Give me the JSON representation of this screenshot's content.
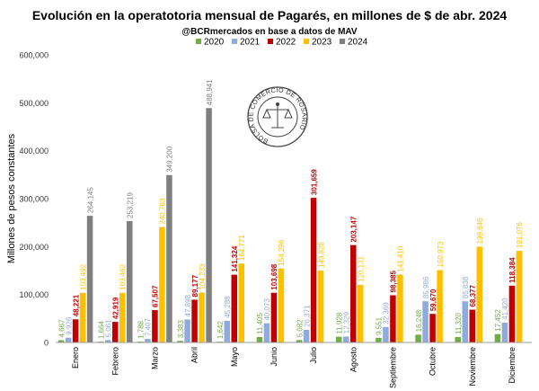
{
  "chart_data": {
    "type": "bar",
    "title": "Evolución en la operatotoria mensual de Pagarés, en millones de $ de abr. 2024",
    "subtitle": "@BCRmercados en base a datos de MAV",
    "ylabel": "Millones de pesos constantes",
    "xlabel": "",
    "ylim": [
      0,
      600000
    ],
    "yticks": [
      0,
      100000,
      200000,
      300000,
      400000,
      500000,
      600000
    ],
    "ytick_labels": [
      "0",
      "100,000",
      "200,000",
      "300,000",
      "400,000",
      "500,000",
      "600,000"
    ],
    "grid": false,
    "legend_position": "top",
    "categories": [
      "Enero",
      "Febrero",
      "Marzo",
      "Abril",
      "Mayo",
      "Junio",
      "Julio",
      "Agosto",
      "Septiembre",
      "Octubre",
      "Noviembre",
      "Diciembre"
    ],
    "series": [
      {
        "name": "2020",
        "color": "#70ad47",
        "values": [
          4667,
          1664,
          1788,
          3383,
          1642,
          11405,
          5082,
          11928,
          9551,
          16248,
          11320,
          17452
        ],
        "labels": [
          "4,667",
          "1,664",
          "1,788",
          "3,383",
          "1,642",
          "11,405",
          "5,082",
          "11,928",
          "9,551",
          "16,248",
          "11,320",
          "17,452"
        ]
      },
      {
        "name": "2021",
        "color": "#8faadc",
        "values": [
          9926,
          5061,
          7407,
          47898,
          45288,
          40073,
          26371,
          12329,
          32369,
          85986,
          85838,
          41420
        ],
        "labels": [
          "9,926",
          "5,061",
          "7,407",
          "47,898",
          "45,288",
          "40,073",
          "26,371",
          "12,329",
          "32,369",
          "85,986",
          "85,838",
          "41,420"
        ]
      },
      {
        "name": "2022",
        "color": "#c00000",
        "values": [
          48221,
          42919,
          67507,
          89177,
          141324,
          103698,
          301659,
          203147,
          98385,
          59670,
          68377,
          118384
        ],
        "labels": [
          "48,221",
          "42,919",
          "67,507",
          "89,177",
          "141,324",
          "103,698",
          "301,659",
          "203,147",
          "98,385",
          "59,670",
          "68,377",
          "118,384"
        ]
      },
      {
        "name": "2023",
        "color": "#ffc000",
        "values": [
          103492,
          103462,
          240783,
          104233,
          164771,
          154296,
          149928,
          120131,
          141410,
          150973,
          199846,
          191076
        ],
        "labels": [
          "103,492",
          "103,462",
          "240,783",
          "104,233",
          "164,771",
          "154,296",
          "149,928",
          "120,131",
          "141,410",
          "150,973",
          "199,846",
          "191,076"
        ]
      },
      {
        "name": "2024",
        "color": "#7f7f7f",
        "values": [
          264145,
          253219,
          349200,
          488941,
          null,
          null,
          null,
          null,
          null,
          null,
          null,
          null
        ],
        "labels": [
          "264,145",
          "253,219",
          "349,200",
          "488,941",
          "",
          "",
          "",
          "",
          "",
          "",
          "",
          ""
        ]
      }
    ]
  },
  "watermark": {
    "ring_text": "BOLSA DE COMERCIO DE ROSARIO",
    "icon": "scales-of-justice-seal"
  }
}
